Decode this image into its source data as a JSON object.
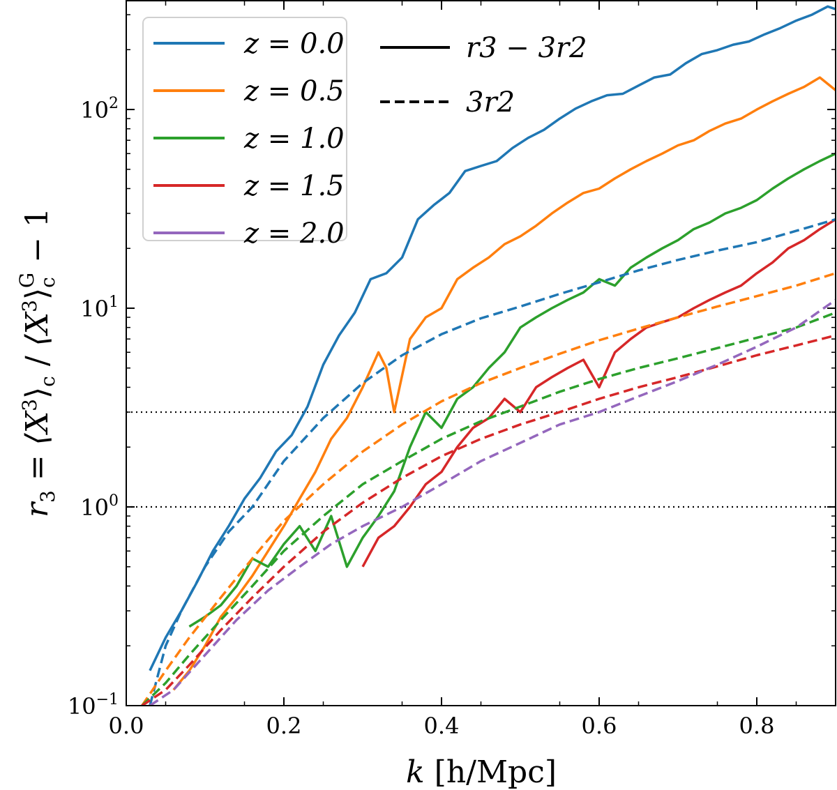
{
  "chart_data": {
    "type": "line",
    "xlabel": "k [h/Mpc]",
    "xlabel_parts": {
      "var": "k",
      "unit": "[h/Mpc]"
    },
    "ylabel": "r_3 = ⟨X^3⟩_c / ⟨X^3⟩_c^G − 1",
    "ylabel_parts": {
      "lhs": "r",
      "lhs_sub": "3",
      "eq": " = ",
      "num": "⟨X",
      "pow": "3",
      "close": "⟩",
      "sub_c": "c",
      "slash": " / ",
      "den": "⟨X",
      "den_pow": "3",
      "den_close": "⟩",
      "den_sub": "c",
      "den_sup": "G",
      "minus_one": " − 1"
    },
    "xlim": [
      0.0,
      0.9
    ],
    "ylim": [
      0.1,
      350
    ],
    "yscale": "log",
    "x_ticks": [
      0.0,
      0.2,
      0.4,
      0.6,
      0.8
    ],
    "x_tick_labels": [
      "0.0",
      "0.2",
      "0.4",
      "0.6",
      "0.8"
    ],
    "y_ticks": [
      0.1,
      1,
      10,
      100
    ],
    "y_tick_labels": [
      {
        "base": "10",
        "exp": "−1"
      },
      {
        "base": "10",
        "exp": "0"
      },
      {
        "base": "10",
        "exp": "1"
      },
      {
        "base": "10",
        "exp": "2"
      }
    ],
    "hlines": [
      {
        "y": 1,
        "style": "dotted"
      },
      {
        "y": 3,
        "style": "dotted"
      }
    ],
    "legend_location": "top-left",
    "legend_redshift": [
      {
        "label": "z = 0.0",
        "color": "#1f77b4"
      },
      {
        "label": "z = 0.5",
        "color": "#ff7f0e"
      },
      {
        "label": "z = 1.0",
        "color": "#2ca02c"
      },
      {
        "label": "z = 1.5",
        "color": "#d62728"
      },
      {
        "label": "z = 2.0",
        "color": "#9467bd"
      }
    ],
    "legend_style": [
      {
        "label": "r3 − 3r2",
        "style": "solid"
      },
      {
        "label": "3r2",
        "style": "dashed"
      }
    ],
    "series": [
      {
        "name": "z=0.0 r3-3r2",
        "z": "0.0",
        "color": "#1f77b4",
        "style": "solid",
        "x": [
          0.03,
          0.05,
          0.07,
          0.09,
          0.11,
          0.13,
          0.15,
          0.17,
          0.19,
          0.21,
          0.23,
          0.25,
          0.27,
          0.29,
          0.31,
          0.33,
          0.35,
          0.37,
          0.39,
          0.41,
          0.43,
          0.45,
          0.47,
          0.49,
          0.51,
          0.53,
          0.55,
          0.57,
          0.59,
          0.61,
          0.63,
          0.65,
          0.67,
          0.69,
          0.71,
          0.73,
          0.75,
          0.77,
          0.79,
          0.81,
          0.83,
          0.85,
          0.87,
          0.89,
          0.9
        ],
        "y": [
          0.15,
          0.22,
          0.3,
          0.42,
          0.6,
          0.8,
          1.1,
          1.4,
          1.9,
          2.3,
          3.2,
          5.2,
          7.3,
          9.5,
          14,
          15,
          18,
          28,
          33,
          38,
          49,
          52,
          55,
          64,
          72,
          79,
          90,
          101,
          110,
          118,
          120,
          132,
          145,
          150,
          171,
          190,
          199,
          212,
          220,
          239,
          257,
          280,
          300,
          330,
          320
        ]
      },
      {
        "name": "z=0.5 r3-3r2",
        "z": "0.5",
        "color": "#ff7f0e",
        "style": "solid",
        "x": [
          0.06,
          0.08,
          0.1,
          0.12,
          0.14,
          0.16,
          0.18,
          0.2,
          0.22,
          0.24,
          0.26,
          0.28,
          0.3,
          0.32,
          0.33,
          0.34,
          0.36,
          0.38,
          0.4,
          0.42,
          0.44,
          0.46,
          0.48,
          0.5,
          0.52,
          0.54,
          0.56,
          0.58,
          0.6,
          0.62,
          0.64,
          0.66,
          0.68,
          0.7,
          0.72,
          0.74,
          0.76,
          0.78,
          0.8,
          0.82,
          0.84,
          0.86,
          0.88,
          0.9
        ],
        "y": [
          0.12,
          0.15,
          0.2,
          0.28,
          0.35,
          0.45,
          0.6,
          0.8,
          1.1,
          1.5,
          2.2,
          2.8,
          4.0,
          6.0,
          5.0,
          3.0,
          7.0,
          9.0,
          10.0,
          14.0,
          16.0,
          18.0,
          21.0,
          23.0,
          26.0,
          30.0,
          34.0,
          38.0,
          40.0,
          45.0,
          50.0,
          55.0,
          60.0,
          66.0,
          70.0,
          78.0,
          85.0,
          90.0,
          100.0,
          110.0,
          120.0,
          130.0,
          145.0,
          125.0
        ]
      },
      {
        "name": "z=1.0 r3-3r2",
        "z": "1.0",
        "color": "#2ca02c",
        "style": "solid",
        "x": [
          0.08,
          0.1,
          0.12,
          0.14,
          0.16,
          0.18,
          0.2,
          0.22,
          0.24,
          0.26,
          0.28,
          0.3,
          0.32,
          0.34,
          0.36,
          0.38,
          0.4,
          0.42,
          0.44,
          0.46,
          0.48,
          0.5,
          0.52,
          0.54,
          0.56,
          0.58,
          0.6,
          0.62,
          0.64,
          0.66,
          0.68,
          0.7,
          0.72,
          0.74,
          0.76,
          0.78,
          0.8,
          0.82,
          0.84,
          0.86,
          0.88,
          0.9
        ],
        "y": [
          0.25,
          0.28,
          0.32,
          0.4,
          0.55,
          0.5,
          0.65,
          0.8,
          0.6,
          0.9,
          0.5,
          0.7,
          0.9,
          1.2,
          2.0,
          3.0,
          2.5,
          3.5,
          4.0,
          5.0,
          6.0,
          8.0,
          9.0,
          10.0,
          11.0,
          12.0,
          14.0,
          13.0,
          16.0,
          18.0,
          20.0,
          22.0,
          25.0,
          27.0,
          30.0,
          32.0,
          35.0,
          40.0,
          45.0,
          50.0,
          55.0,
          60.0
        ]
      },
      {
        "name": "z=1.5 r3-3r2",
        "z": "1.5",
        "color": "#d62728",
        "style": "solid",
        "x": [
          0.3,
          0.32,
          0.34,
          0.36,
          0.38,
          0.4,
          0.42,
          0.44,
          0.46,
          0.48,
          0.5,
          0.52,
          0.54,
          0.56,
          0.58,
          0.6,
          0.62,
          0.64,
          0.66,
          0.68,
          0.7,
          0.72,
          0.74,
          0.76,
          0.78,
          0.8,
          0.82,
          0.84,
          0.86,
          0.88,
          0.9
        ],
        "y": [
          0.5,
          0.7,
          0.8,
          1.0,
          1.3,
          1.5,
          2.0,
          2.5,
          2.8,
          3.5,
          3.0,
          4.0,
          4.5,
          5.0,
          5.5,
          4.0,
          6.0,
          7.0,
          8.0,
          8.5,
          9.0,
          10.0,
          11.0,
          12.0,
          13.0,
          15.0,
          17.0,
          20.0,
          22.0,
          25.0,
          28.0
        ]
      },
      {
        "name": "z=0.0 3r2",
        "z": "0.0",
        "color": "#1f77b4",
        "style": "dashed",
        "x": [
          0.03,
          0.05,
          0.07,
          0.1,
          0.13,
          0.16,
          0.2,
          0.25,
          0.3,
          0.35,
          0.4,
          0.45,
          0.5,
          0.55,
          0.6,
          0.65,
          0.7,
          0.75,
          0.8,
          0.85,
          0.9
        ],
        "y": [
          0.1,
          0.2,
          0.3,
          0.5,
          0.75,
          1.0,
          1.7,
          2.8,
          4.2,
          5.8,
          7.4,
          8.9,
          10.2,
          11.8,
          13.5,
          15.5,
          17.5,
          19.5,
          21.5,
          24.5,
          28.0
        ]
      },
      {
        "name": "z=0.5 3r2",
        "z": "0.5",
        "color": "#ff7f0e",
        "style": "dashed",
        "x": [
          0.02,
          0.05,
          0.08,
          0.12,
          0.16,
          0.2,
          0.25,
          0.3,
          0.35,
          0.4,
          0.45,
          0.5,
          0.55,
          0.6,
          0.65,
          0.7,
          0.75,
          0.8,
          0.85,
          0.9
        ],
        "y": [
          0.1,
          0.15,
          0.22,
          0.35,
          0.55,
          0.85,
          1.3,
          1.9,
          2.6,
          3.4,
          4.2,
          5.0,
          5.9,
          6.9,
          7.9,
          9.0,
          10.2,
          11.5,
          13.0,
          15.0
        ]
      },
      {
        "name": "z=1.0 3r2",
        "z": "1.0",
        "color": "#2ca02c",
        "style": "dashed",
        "x": [
          0.02,
          0.05,
          0.08,
          0.12,
          0.16,
          0.2,
          0.25,
          0.3,
          0.35,
          0.4,
          0.45,
          0.5,
          0.55,
          0.6,
          0.65,
          0.7,
          0.75,
          0.8,
          0.85,
          0.9
        ],
        "y": [
          0.1,
          0.13,
          0.18,
          0.27,
          0.4,
          0.6,
          0.9,
          1.3,
          1.7,
          2.2,
          2.7,
          3.2,
          3.8,
          4.4,
          5.0,
          5.6,
          6.3,
          7.1,
          8.0,
          9.5
        ]
      },
      {
        "name": "z=1.5 3r2",
        "z": "1.5",
        "color": "#d62728",
        "style": "dashed",
        "x": [
          0.02,
          0.05,
          0.08,
          0.12,
          0.16,
          0.2,
          0.25,
          0.3,
          0.35,
          0.4,
          0.45,
          0.5,
          0.55,
          0.6,
          0.65,
          0.7,
          0.75,
          0.8,
          0.85,
          0.9
        ],
        "y": [
          0.1,
          0.12,
          0.16,
          0.24,
          0.35,
          0.5,
          0.75,
          1.05,
          1.4,
          1.8,
          2.2,
          2.6,
          3.0,
          3.5,
          4.0,
          4.5,
          5.1,
          5.8,
          6.5,
          7.3
        ]
      },
      {
        "name": "z=2.0 3r2",
        "z": "2.0",
        "color": "#9467bd",
        "style": "dashed",
        "x": [
          0.03,
          0.06,
          0.1,
          0.14,
          0.18,
          0.22,
          0.26,
          0.3,
          0.35,
          0.4,
          0.45,
          0.5,
          0.55,
          0.6,
          0.65,
          0.7,
          0.75,
          0.8,
          0.85,
          0.9
        ],
        "y": [
          0.1,
          0.12,
          0.18,
          0.27,
          0.38,
          0.5,
          0.65,
          0.8,
          1.0,
          1.3,
          1.7,
          2.1,
          2.6,
          3.0,
          3.6,
          4.3,
          5.2,
          6.4,
          8.0,
          11.0
        ]
      }
    ]
  }
}
